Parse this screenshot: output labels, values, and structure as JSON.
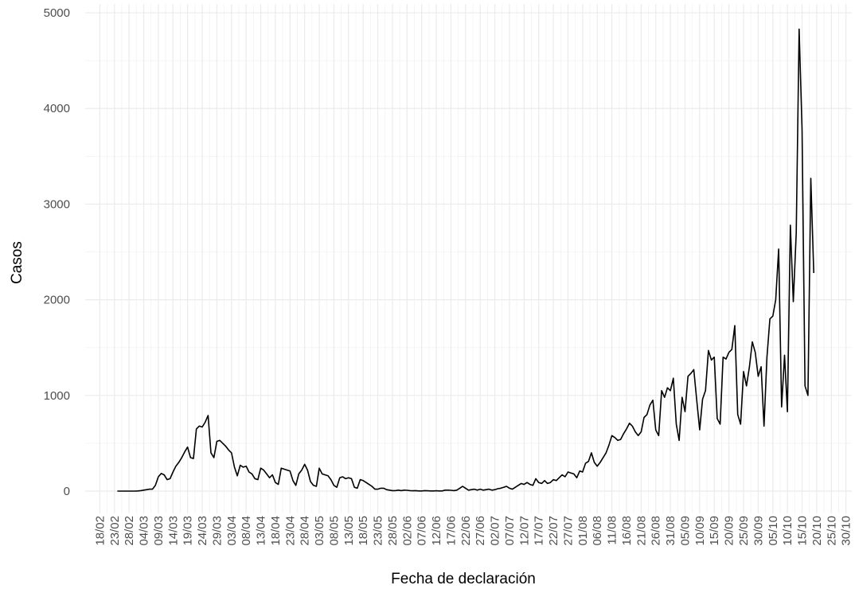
{
  "chart_data": {
    "type": "line",
    "x_label": "Fecha de declaración",
    "y_label": "Casos",
    "color": "#000000",
    "grid": true,
    "xlim": [
      "13/02",
      "01/11"
    ],
    "ylim": [
      -233,
      5092
    ],
    "yticks": [
      0,
      1000,
      2000,
      3000,
      4000,
      5000
    ],
    "xticks": [
      "18/02",
      "23/02",
      "28/02",
      "04/03",
      "09/03",
      "14/03",
      "19/03",
      "24/03",
      "29/03",
      "03/04",
      "08/04",
      "13/04",
      "18/04",
      "23/04",
      "28/04",
      "03/05",
      "08/05",
      "13/05",
      "18/05",
      "23/05",
      "28/05",
      "02/06",
      "07/06",
      "12/06",
      "17/06",
      "22/06",
      "27/06",
      "02/07",
      "07/07",
      "12/07",
      "17/07",
      "22/07",
      "27/07",
      "01/08",
      "06/08",
      "11/08",
      "16/08",
      "21/08",
      "26/08",
      "31/08",
      "05/09",
      "10/09",
      "15/09",
      "20/09",
      "25/09",
      "30/09",
      "05/10",
      "10/10",
      "15/10",
      "20/10",
      "25/10",
      "30/10"
    ],
    "x": [
      "24/02",
      "25/02",
      "26/02",
      "27/02",
      "28/02",
      "29/02",
      "01/03",
      "02/03",
      "03/03",
      "04/03",
      "05/03",
      "06/03",
      "07/03",
      "08/03",
      "09/03",
      "10/03",
      "11/03",
      "12/03",
      "13/03",
      "14/03",
      "15/03",
      "16/03",
      "17/03",
      "18/03",
      "19/03",
      "20/03",
      "21/03",
      "22/03",
      "23/03",
      "24/03",
      "25/03",
      "26/03",
      "27/03",
      "28/03",
      "29/03",
      "30/03",
      "31/03",
      "01/04",
      "02/04",
      "03/04",
      "04/04",
      "05/04",
      "06/04",
      "07/04",
      "08/04",
      "09/04",
      "10/04",
      "11/04",
      "12/04",
      "13/04",
      "14/04",
      "15/04",
      "16/04",
      "17/04",
      "18/04",
      "19/04",
      "20/04",
      "21/04",
      "22/04",
      "23/04",
      "24/04",
      "25/04",
      "26/04",
      "27/04",
      "28/04",
      "29/04",
      "30/04",
      "01/05",
      "02/05",
      "03/05",
      "04/05",
      "05/05",
      "06/05",
      "07/05",
      "08/05",
      "09/05",
      "10/05",
      "11/05",
      "12/05",
      "13/05",
      "14/05",
      "15/05",
      "16/05",
      "17/05",
      "18/05",
      "19/05",
      "20/05",
      "21/05",
      "22/05",
      "23/05",
      "24/05",
      "25/05",
      "26/05",
      "27/05",
      "28/05",
      "29/05",
      "30/05",
      "31/05",
      "01/06",
      "02/06",
      "03/06",
      "04/06",
      "05/06",
      "06/06",
      "07/06",
      "08/06",
      "09/06",
      "10/06",
      "11/06",
      "12/06",
      "13/06",
      "14/06",
      "15/06",
      "16/06",
      "17/06",
      "18/06",
      "19/06",
      "20/06",
      "21/06",
      "22/06",
      "23/06",
      "24/06",
      "25/06",
      "26/06",
      "27/06",
      "28/06",
      "29/06",
      "30/06",
      "01/07",
      "02/07",
      "03/07",
      "04/07",
      "05/07",
      "06/07",
      "07/07",
      "08/07",
      "09/07",
      "10/07",
      "11/07",
      "12/07",
      "13/07",
      "14/07",
      "15/07",
      "16/07",
      "17/07",
      "18/07",
      "19/07",
      "20/07",
      "21/07",
      "22/07",
      "23/07",
      "24/07",
      "25/07",
      "26/07",
      "27/07",
      "28/07",
      "29/07",
      "30/07",
      "31/07",
      "01/08",
      "02/08",
      "03/08",
      "04/08",
      "05/08",
      "06/08",
      "07/08",
      "08/08",
      "09/08",
      "10/08",
      "11/08",
      "12/08",
      "13/08",
      "14/08",
      "15/08",
      "16/08",
      "17/08",
      "18/08",
      "19/08",
      "20/08",
      "21/08",
      "22/08",
      "23/08",
      "24/08",
      "25/08",
      "26/08",
      "27/08",
      "28/08",
      "29/08",
      "30/08",
      "31/08",
      "01/09",
      "02/09",
      "03/09",
      "04/09",
      "05/09",
      "06/09",
      "07/09",
      "08/09",
      "09/09",
      "10/09",
      "11/09",
      "12/09",
      "13/09",
      "14/09",
      "15/09",
      "16/09",
      "17/09",
      "18/09",
      "19/09",
      "20/09",
      "21/09",
      "22/09",
      "23/09",
      "24/09",
      "25/09",
      "26/09",
      "27/09",
      "28/09",
      "29/09",
      "30/09",
      "01/10",
      "02/10",
      "03/10",
      "04/10",
      "05/10",
      "06/10",
      "07/10",
      "08/10",
      "09/10",
      "10/10",
      "11/10",
      "12/10",
      "13/10",
      "14/10",
      "15/10",
      "16/10",
      "17/10",
      "18/10",
      "19/10"
    ],
    "values": [
      0,
      0,
      0,
      0,
      0,
      0,
      0,
      2,
      5,
      10,
      15,
      20,
      20,
      60,
      150,
      185,
      170,
      120,
      130,
      200,
      260,
      300,
      350,
      410,
      460,
      350,
      340,
      650,
      680,
      670,
      720,
      790,
      400,
      350,
      520,
      530,
      500,
      470,
      430,
      400,
      250,
      160,
      270,
      250,
      260,
      200,
      180,
      130,
      120,
      240,
      220,
      180,
      140,
      170,
      90,
      70,
      240,
      230,
      220,
      210,
      110,
      60,
      180,
      220,
      280,
      220,
      100,
      60,
      50,
      240,
      180,
      170,
      160,
      120,
      60,
      40,
      140,
      150,
      130,
      140,
      130,
      40,
      30,
      120,
      110,
      90,
      70,
      50,
      20,
      20,
      30,
      30,
      15,
      10,
      5,
      5,
      10,
      5,
      10,
      8,
      5,
      3,
      5,
      2,
      2,
      5,
      3,
      2,
      2,
      3,
      2,
      2,
      10,
      10,
      8,
      5,
      10,
      30,
      50,
      30,
      10,
      15,
      20,
      10,
      20,
      10,
      15,
      20,
      10,
      15,
      25,
      30,
      40,
      50,
      30,
      20,
      40,
      60,
      80,
      70,
      90,
      70,
      60,
      130,
      90,
      80,
      110,
      80,
      90,
      120,
      110,
      140,
      170,
      150,
      200,
      190,
      180,
      140,
      210,
      200,
      290,
      310,
      400,
      300,
      260,
      300,
      350,
      400,
      480,
      580,
      560,
      530,
      540,
      600,
      650,
      710,
      680,
      620,
      580,
      620,
      770,
      800,
      900,
      950,
      640,
      580,
      1050,
      980,
      1080,
      1050,
      1180,
      700,
      530,
      980,
      830,
      1200,
      1230,
      1270,
      950,
      640,
      960,
      1050,
      1470,
      1370,
      1400,
      760,
      700,
      1400,
      1380,
      1450,
      1480,
      1730,
      800,
      700,
      1250,
      1100,
      1300,
      1560,
      1450,
      1200,
      1300,
      680,
      1400,
      1800,
      1830,
      2000,
      2530,
      880,
      1420,
      830,
      2780,
      1980,
      2700,
      4830,
      3780,
      1100,
      1000,
      3270,
      2280
    ]
  }
}
